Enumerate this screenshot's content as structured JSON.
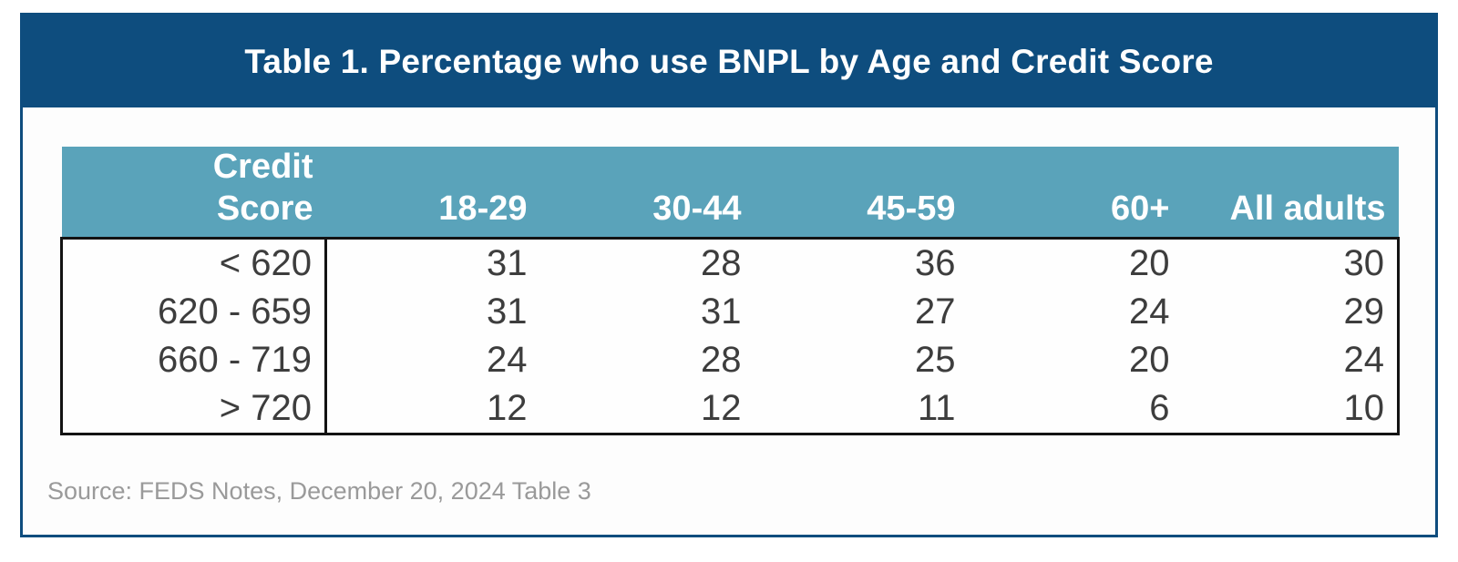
{
  "title": "Table 1. Percentage who use BNPL by Age and Credit Score",
  "source_note": "Source: FEDS Notes, December 20, 2024 Table 3",
  "chart_data": {
    "type": "table",
    "title": "Table 1. Percentage who use BNPL by Age and Credit Score",
    "columns": [
      "Credit\nScore",
      "18-29",
      "30-44",
      "45-59",
      "60+",
      "All adults"
    ],
    "rows": [
      {
        "label": "< 620",
        "values": [
          31,
          28,
          36,
          20,
          30
        ]
      },
      {
        "label": "620 - 659",
        "values": [
          31,
          31,
          27,
          24,
          29
        ]
      },
      {
        "label": "660 - 719",
        "values": [
          24,
          28,
          25,
          20,
          24
        ]
      },
      {
        "label": "> 720",
        "values": [
          12,
          12,
          11,
          6,
          10
        ]
      }
    ],
    "source": "Source: FEDS Notes, December 20, 2024 Table 3",
    "layout": {
      "header_align": "right",
      "values_align": "right",
      "first_column_separator": true
    }
  },
  "colors": {
    "title_bar": "#0e4d7e",
    "frame_border": "#0e4d7e",
    "table_header_bg": "#5aa3ba",
    "table_header_text": "#ffffff",
    "body_border": "#131313",
    "value_text": "#3d3d3d",
    "source_text": "#9a9a9a"
  }
}
